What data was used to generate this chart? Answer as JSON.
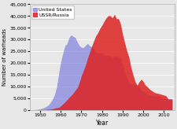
{
  "title": "",
  "xlabel": "Year",
  "ylabel": "Number of warheads",
  "ylim": [
    0,
    45000
  ],
  "yticks": [
    0,
    5000,
    10000,
    15000,
    20000,
    25000,
    30000,
    35000,
    40000,
    45000
  ],
  "xlim": [
    1945,
    2015
  ],
  "xticks": [
    1950,
    1960,
    1970,
    1980,
    1990,
    2000,
    2010
  ],
  "us_color": "#7777dd",
  "ussr_color": "#dd2222",
  "us_alpha": 0.65,
  "ussr_alpha": 0.85,
  "background_color": "#e8e8e8",
  "legend_us": "United States",
  "legend_ussr": "USSR/Russia",
  "us_years": [
    1945,
    1946,
    1947,
    1948,
    1949,
    1950,
    1951,
    1952,
    1953,
    1954,
    1955,
    1956,
    1957,
    1958,
    1959,
    1960,
    1961,
    1962,
    1963,
    1964,
    1965,
    1966,
    1967,
    1968,
    1969,
    1970,
    1971,
    1972,
    1973,
    1974,
    1975,
    1976,
    1977,
    1978,
    1979,
    1980,
    1981,
    1982,
    1983,
    1984,
    1985,
    1986,
    1987,
    1988,
    1989,
    1990,
    1991,
    1992,
    1993,
    1994,
    1995,
    1996,
    1997,
    1998,
    1999,
    2000,
    2001,
    2002,
    2003,
    2004,
    2005,
    2006,
    2007,
    2008,
    2009,
    2010,
    2011,
    2012,
    2013,
    2014
  ],
  "us_values": [
    6,
    11,
    32,
    110,
    235,
    369,
    640,
    1005,
    1436,
    2063,
    3057,
    4618,
    6444,
    9822,
    15468,
    20434,
    24111,
    27297,
    28133,
    30751,
    31982,
    31255,
    30893,
    28884,
    27387,
    26662,
    26573,
    27427,
    28335,
    27217,
    27052,
    25956,
    24747,
    24243,
    24243,
    24304,
    23175,
    22937,
    23305,
    22761,
    21827,
    22896,
    22913,
    22217,
    22217,
    19008,
    15796,
    13731,
    11536,
    10979,
    10953,
    10952,
    10150,
    9938,
    8200,
    7982,
    7206,
    6614,
    6390,
    5966,
    5945,
    5770,
    5865,
    5765,
    5113,
    4802,
    5000,
    4650,
    4804,
    4764
  ],
  "ussr_years": [
    1949,
    1950,
    1951,
    1952,
    1953,
    1954,
    1955,
    1956,
    1957,
    1958,
    1959,
    1960,
    1961,
    1962,
    1963,
    1964,
    1965,
    1966,
    1967,
    1968,
    1969,
    1970,
    1971,
    1972,
    1973,
    1974,
    1975,
    1976,
    1977,
    1978,
    1979,
    1980,
    1981,
    1982,
    1983,
    1984,
    1985,
    1986,
    1987,
    1988,
    1989,
    1990,
    1991,
    1992,
    1993,
    1994,
    1995,
    1996,
    1997,
    1998,
    1999,
    2000,
    2001,
    2002,
    2003,
    2004,
    2005,
    2006,
    2007,
    2008,
    2009,
    2010,
    2011,
    2012,
    2013,
    2014
  ],
  "ussr_values": [
    1,
    5,
    25,
    50,
    120,
    210,
    300,
    426,
    660,
    869,
    1060,
    1627,
    2471,
    3322,
    4238,
    5242,
    6129,
    7089,
    8339,
    9399,
    11649,
    14524,
    16764,
    19055,
    22038,
    24544,
    27053,
    29459,
    31552,
    32924,
    34769,
    36133,
    37752,
    39197,
    40159,
    40159,
    39197,
    40723,
    38859,
    38864,
    36496,
    32050,
    28595,
    25155,
    22500,
    18200,
    14978,
    12085,
    10500,
    12000,
    13000,
    12000,
    10500,
    9800,
    8800,
    8200,
    7600,
    7200,
    7000,
    6800,
    6500,
    6257,
    6000,
    4650,
    4500,
    4500
  ]
}
